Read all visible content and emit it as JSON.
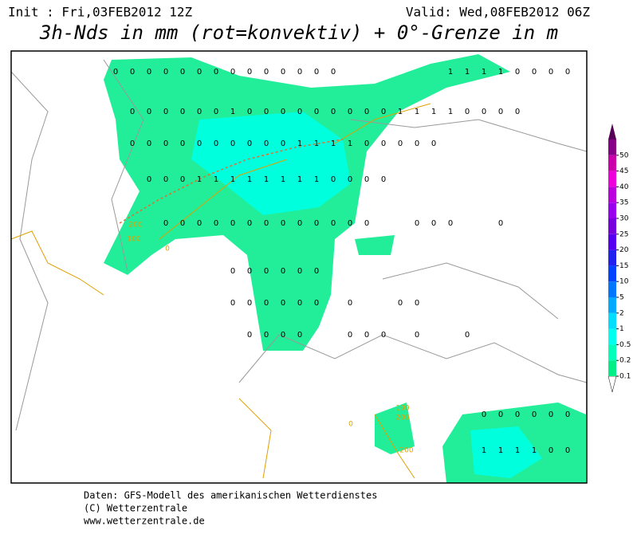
{
  "header": {
    "init": "Init : Fri,03FEB2012 12Z",
    "valid": "Valid: Wed,08FEB2012 06Z",
    "title": "3h-Nds in mm (rot=konvektiv) + 0°-Grenze in m"
  },
  "legend": {
    "levels": [
      0.1,
      0.2,
      0.5,
      1,
      2,
      5,
      10,
      15,
      20,
      25,
      30,
      35,
      40,
      45,
      50
    ],
    "colors": [
      "#00ee88",
      "#00ffbb",
      "#00ffee",
      "#00ddff",
      "#00aaff",
      "#0077ff",
      "#0044ff",
      "#2222ee",
      "#5500ee",
      "#7700dd",
      "#9900ee",
      "#bb00dd",
      "#ee00dd",
      "#cc00aa",
      "#880088",
      "#550055"
    ]
  },
  "contour_labels": [
    "200",
    "100",
    "0",
    "100",
    "200",
    "200",
    "0"
  ],
  "precip_labels": [
    [
      0,
      0,
      0,
      0,
      0,
      0,
      0,
      0,
      0,
      0,
      0,
      0,
      0,
      0,
      null,
      null,
      null,
      null,
      null,
      null,
      1,
      1,
      1,
      1,
      0,
      0,
      0,
      0
    ],
    [
      null,
      0,
      0,
      0,
      0,
      0,
      0,
      1,
      0,
      0,
      0,
      0,
      0,
      0,
      0,
      0,
      0,
      1,
      1,
      1,
      1,
      0,
      0,
      0,
      0,
      null,
      null,
      null
    ],
    [
      null,
      0,
      0,
      0,
      0,
      0,
      0,
      0,
      0,
      0,
      0,
      1,
      1,
      1,
      1,
      0,
      0,
      0,
      0,
      0,
      null,
      null,
      null,
      null,
      null,
      null,
      null,
      null
    ],
    [
      null,
      null,
      0,
      0,
      0,
      1,
      1,
      1,
      1,
      1,
      1,
      1,
      1,
      0,
      0,
      0,
      0,
      null,
      null,
      null,
      null,
      null,
      null,
      null,
      null,
      null,
      null,
      null
    ],
    [
      null,
      null,
      null,
      0,
      0,
      0,
      0,
      0,
      0,
      0,
      0,
      0,
      0,
      0,
      0,
      0,
      null,
      null,
      0,
      0,
      0,
      null,
      null,
      0,
      null,
      null,
      null,
      null
    ],
    [
      null,
      null,
      null,
      null,
      null,
      null,
      null,
      0,
      0,
      0,
      0,
      0,
      0,
      null,
      null,
      null,
      null,
      null,
      null,
      null,
      null,
      null,
      null,
      null,
      null,
      null,
      null,
      null
    ],
    [
      null,
      null,
      null,
      null,
      null,
      null,
      null,
      0,
      0,
      0,
      0,
      0,
      0,
      null,
      0,
      null,
      null,
      0,
      0,
      null,
      null,
      null,
      null,
      null,
      null,
      null,
      null,
      null
    ],
    [
      null,
      null,
      null,
      null,
      null,
      null,
      null,
      null,
      0,
      0,
      0,
      0,
      null,
      null,
      0,
      0,
      0,
      null,
      0,
      null,
      null,
      0,
      null,
      null,
      null,
      null,
      null,
      null
    ],
    [
      null,
      null,
      null,
      null,
      null,
      null,
      null,
      null,
      null,
      null,
      null,
      null,
      null,
      null,
      null,
      null,
      null,
      null,
      null,
      null,
      null,
      null,
      0,
      0,
      0,
      0,
      0,
      0
    ],
    [
      null,
      null,
      null,
      null,
      null,
      null,
      null,
      null,
      null,
      null,
      null,
      null,
      null,
      null,
      null,
      null,
      null,
      null,
      null,
      null,
      null,
      null,
      1,
      1,
      1,
      1,
      0,
      0
    ]
  ],
  "footer": [
    "Daten: GFS-Modell des amerikanischen Wetterdienstes",
    "(C) Wetterzentrale",
    "www.wetterzentrale.de"
  ]
}
